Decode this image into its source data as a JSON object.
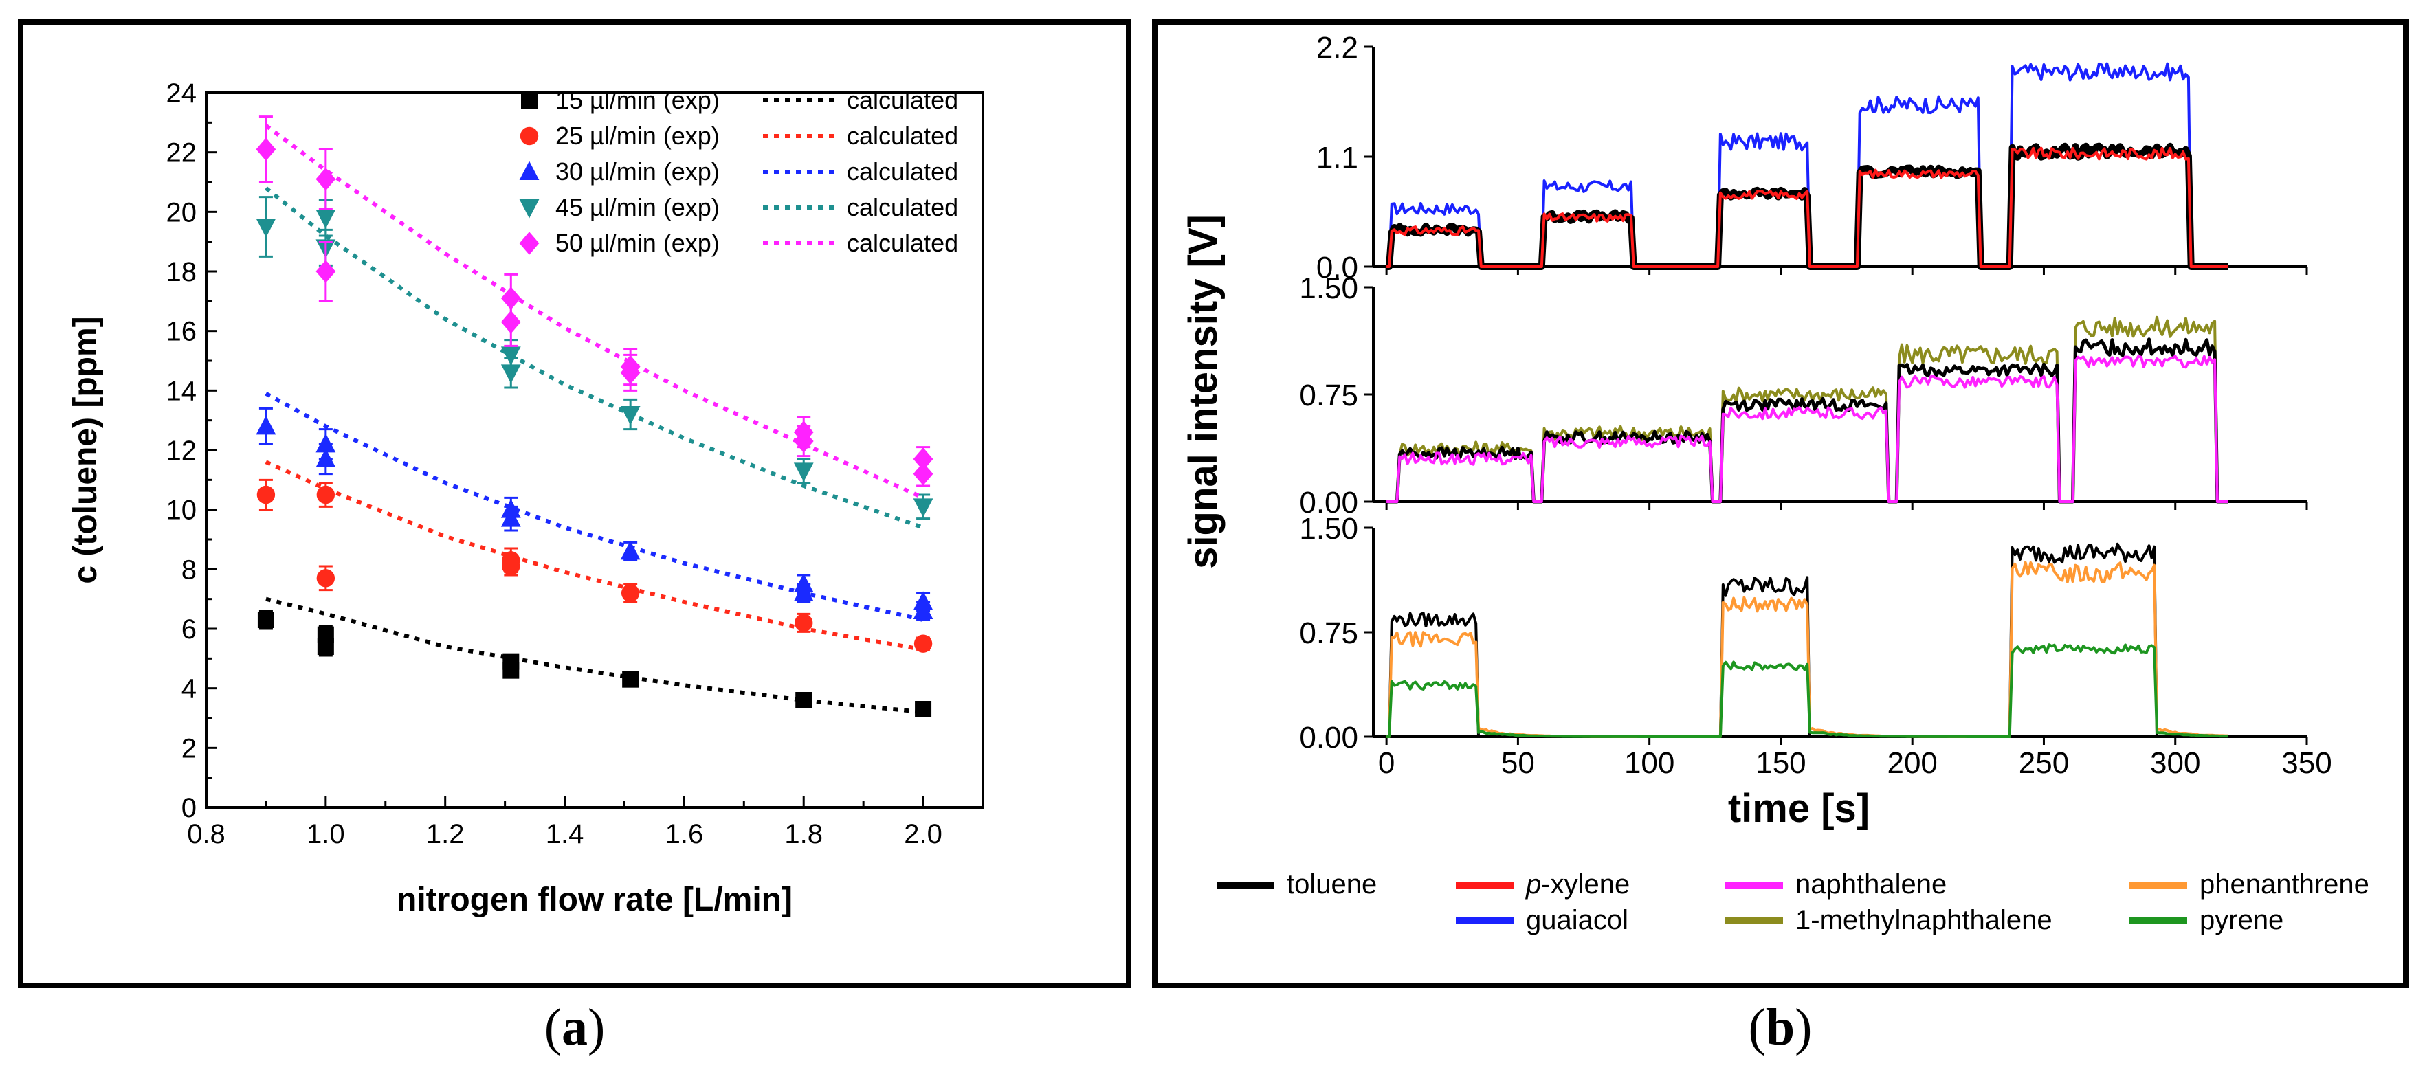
{
  "captions": {
    "a": "a",
    "b": "b"
  },
  "chart_data": [
    {
      "id": "a",
      "type": "scatter",
      "title": "",
      "xlabel": "nitrogen flow rate [L/min]",
      "ylabel": "c (toluene) [ppm]",
      "xlim": [
        0.8,
        2.1
      ],
      "ylim": [
        0,
        24
      ],
      "x_ticks": [
        "0.8",
        "1.0",
        "1.2",
        "1.4",
        "1.6",
        "1.8",
        "2.0"
      ],
      "y_ticks": [
        "0",
        "2",
        "4",
        "6",
        "8",
        "10",
        "12",
        "14",
        "16",
        "18",
        "20",
        "22",
        "24"
      ],
      "legend_position": "top-right",
      "series": [
        {
          "name": "15 µl/min (exp)",
          "fit_label": "calculated",
          "marker": "square",
          "color": "#000000",
          "points": [
            [
              0.9,
              6.3,
              0.3
            ],
            [
              1.0,
              5.8,
              0.3
            ],
            [
              1.0,
              5.4,
              0.3
            ],
            [
              1.31,
              4.9,
              0.2
            ],
            [
              1.31,
              4.6,
              0.2
            ],
            [
              1.51,
              4.3,
              0.2
            ],
            [
              1.8,
              3.6,
              0.2
            ],
            [
              2.0,
              3.3,
              0.2
            ]
          ],
          "fit": [
            [
              0.9,
              7.0
            ],
            [
              1.0,
              6.5
            ],
            [
              1.2,
              5.4
            ],
            [
              1.4,
              4.7
            ],
            [
              1.6,
              4.1
            ],
            [
              1.8,
              3.6
            ],
            [
              2.0,
              3.2
            ]
          ]
        },
        {
          "name": "25 µl/min (exp)",
          "fit_label": "calculated",
          "marker": "circle",
          "color": "#ff2a1a",
          "points": [
            [
              0.9,
              10.5,
              0.5
            ],
            [
              1.0,
              10.5,
              0.4
            ],
            [
              1.0,
              7.7,
              0.4
            ],
            [
              1.31,
              8.3,
              0.4
            ],
            [
              1.31,
              8.1,
              0.3
            ],
            [
              1.51,
              7.2,
              0.3
            ],
            [
              1.8,
              6.2,
              0.3
            ],
            [
              2.0,
              5.5,
              0.2
            ]
          ],
          "fit": [
            [
              0.9,
              11.6
            ],
            [
              1.0,
              10.7
            ],
            [
              1.2,
              9.1
            ],
            [
              1.4,
              7.9
            ],
            [
              1.6,
              6.9
            ],
            [
              1.8,
              6.0
            ],
            [
              2.0,
              5.3
            ]
          ]
        },
        {
          "name": "30 µl/min (exp)",
          "fit_label": "calculated",
          "marker": "triangle-up",
          "color": "#1a2aff",
          "points": [
            [
              0.9,
              12.8,
              0.6
            ],
            [
              1.0,
              12.2,
              0.5
            ],
            [
              1.0,
              11.7,
              0.5
            ],
            [
              1.31,
              10.0,
              0.4
            ],
            [
              1.31,
              9.7,
              0.4
            ],
            [
              1.51,
              8.6,
              0.3
            ],
            [
              1.8,
              7.5,
              0.3
            ],
            [
              1.8,
              7.2,
              0.3
            ],
            [
              2.0,
              6.9,
              0.3
            ],
            [
              2.0,
              6.6,
              0.3
            ]
          ],
          "fit": [
            [
              0.9,
              13.9
            ],
            [
              1.0,
              12.8
            ],
            [
              1.2,
              10.9
            ],
            [
              1.4,
              9.4
            ],
            [
              1.6,
              8.2
            ],
            [
              1.8,
              7.2
            ],
            [
              2.0,
              6.3
            ]
          ]
        },
        {
          "name": "45 µl/min (exp)",
          "fit_label": "calculated",
          "marker": "triangle-down",
          "color": "#1e9090",
          "points": [
            [
              0.9,
              19.5,
              1.0
            ],
            [
              1.0,
              19.8,
              0.6
            ],
            [
              1.0,
              18.8,
              0.6
            ],
            [
              1.31,
              15.2,
              0.5
            ],
            [
              1.31,
              14.6,
              0.5
            ],
            [
              1.51,
              13.2,
              0.5
            ],
            [
              1.8,
              11.3,
              0.4
            ],
            [
              2.0,
              10.1,
              0.4
            ]
          ],
          "fit": [
            [
              0.9,
              20.8
            ],
            [
              1.0,
              19.2
            ],
            [
              1.2,
              16.4
            ],
            [
              1.4,
              14.2
            ],
            [
              1.6,
              12.4
            ],
            [
              1.8,
              10.8
            ],
            [
              2.0,
              9.4
            ]
          ]
        },
        {
          "name": "50 µl/min (exp)",
          "fit_label": "calculated",
          "marker": "diamond",
          "color": "#ff22ff",
          "points": [
            [
              0.9,
              22.1,
              1.1
            ],
            [
              1.0,
              21.1,
              1.0
            ],
            [
              1.0,
              18.0,
              1.0
            ],
            [
              1.31,
              17.1,
              0.8
            ],
            [
              1.31,
              16.3,
              0.8
            ],
            [
              1.51,
              14.8,
              0.6
            ],
            [
              1.51,
              14.6,
              0.6
            ],
            [
              1.8,
              12.6,
              0.5
            ],
            [
              1.8,
              12.3,
              0.5
            ],
            [
              2.0,
              11.7,
              0.4
            ],
            [
              2.0,
              11.2,
              0.4
            ]
          ],
          "fit": [
            [
              0.9,
              22.9
            ],
            [
              1.0,
              21.4
            ],
            [
              1.2,
              18.6
            ],
            [
              1.4,
              16.1
            ],
            [
              1.6,
              14.0
            ],
            [
              1.8,
              12.2
            ],
            [
              2.0,
              10.4
            ]
          ]
        }
      ]
    },
    {
      "id": "b",
      "type": "line",
      "title": "",
      "xlabel": "time [s]",
      "ylabel": "signal intensity [V]",
      "xlim": [
        -5,
        350
      ],
      "x_ticks": [
        "0",
        "50",
        "100",
        "150",
        "200",
        "250",
        "300",
        "350"
      ],
      "legend_position": "bottom",
      "legend": [
        {
          "name": "toluene",
          "color": "#000000",
          "italic_prefix": ""
        },
        {
          "name": "-xylene",
          "color": "#ff1a1a",
          "italic_prefix": "p"
        },
        {
          "name": "naphthalene",
          "color": "#ff22ff",
          "italic_prefix": ""
        },
        {
          "name": "phenanthrene",
          "color": "#ff9933",
          "italic_prefix": ""
        },
        {
          "name": "guaiacol",
          "color": "#1a22ff",
          "italic_prefix": ""
        },
        {
          "name": "1-methylnaphthalene",
          "color": "#8c8c1e",
          "italic_prefix": ""
        },
        {
          "name": "pyrene",
          "color": "#1e9620",
          "italic_prefix": ""
        }
      ],
      "subplots": [
        {
          "ylim": [
            0,
            2.2
          ],
          "y_ticks": [
            "0.0",
            "1.1",
            "2.2"
          ],
          "series": [
            {
              "name": "guaiacol",
              "color": "#1a22ff",
              "width": 4,
              "noise": 0.06,
              "steps": [
                [
                  2,
                  35,
                  0.58
                ],
                [
                  60,
                  93,
                  0.8
                ],
                [
                  127,
                  160,
                  1.25
                ],
                [
                  180,
                  225,
                  1.62
                ],
                [
                  238,
                  305,
                  1.95
                ]
              ]
            },
            {
              "name": "toluene",
              "color": "#000000",
              "width": 10,
              "noise": 0.04,
              "steps": [
                [
                  2,
                  35,
                  0.37
                ],
                [
                  60,
                  93,
                  0.5
                ],
                [
                  127,
                  160,
                  0.73
                ],
                [
                  180,
                  225,
                  0.95
                ],
                [
                  238,
                  305,
                  1.15
                ]
              ]
            },
            {
              "name": "p-xylene",
              "color": "#ff1a1a",
              "width": 4,
              "noise": 0.04,
              "steps": [
                [
                  2,
                  35,
                  0.36
                ],
                [
                  60,
                  93,
                  0.49
                ],
                [
                  127,
                  160,
                  0.72
                ],
                [
                  180,
                  225,
                  0.93
                ],
                [
                  238,
                  305,
                  1.13
                ]
              ]
            }
          ]
        },
        {
          "ylim": [
            0,
            1.5
          ],
          "y_ticks": [
            "0.00",
            "0.75",
            "1.50"
          ],
          "series": [
            {
              "name": "1-methylnaphthalene",
              "color": "#8c8c1e",
              "width": 4,
              "noise": 0.05,
              "steps": [
                [
                  5,
                  55,
                  0.37
                ],
                [
                  60,
                  123,
                  0.48
                ],
                [
                  128,
                  190,
                  0.75
                ],
                [
                  195,
                  255,
                  1.03
                ],
                [
                  262,
                  315,
                  1.22
                ]
              ]
            },
            {
              "name": "toluene",
              "color": "#000000",
              "width": 5,
              "noise": 0.04,
              "steps": [
                [
                  5,
                  55,
                  0.34
                ],
                [
                  60,
                  123,
                  0.45
                ],
                [
                  128,
                  190,
                  0.68
                ],
                [
                  195,
                  255,
                  0.92
                ],
                [
                  262,
                  315,
                  1.08
                ]
              ]
            },
            {
              "name": "naphthalene",
              "color": "#ff22ff",
              "width": 4,
              "noise": 0.04,
              "steps": [
                [
                  5,
                  55,
                  0.3
                ],
                [
                  60,
                  123,
                  0.42
                ],
                [
                  128,
                  190,
                  0.62
                ],
                [
                  195,
                  255,
                  0.84
                ],
                [
                  262,
                  315,
                  0.98
                ]
              ]
            }
          ]
        },
        {
          "ylim": [
            0,
            1.5
          ],
          "y_ticks": [
            "0.00",
            "0.75",
            "1.50"
          ],
          "series": [
            {
              "name": "toluene",
              "color": "#000000",
              "width": 4,
              "noise": 0.05,
              "steps": [
                [
                  2,
                  34,
                  0.84
                ],
                [
                  128,
                  160,
                  1.08
                ],
                [
                  238,
                  292,
                  1.32
                ]
              ]
            },
            {
              "name": "phenanthrene",
              "color": "#ff9933",
              "width": 4,
              "noise": 0.05,
              "tail": 0.06,
              "steps": [
                [
                  2,
                  34,
                  0.7
                ],
                [
                  128,
                  160,
                  0.95
                ],
                [
                  238,
                  292,
                  1.18
                ]
              ]
            },
            {
              "name": "pyrene",
              "color": "#1e9620",
              "width": 4,
              "noise": 0.03,
              "tail": 0.04,
              "steps": [
                [
                  2,
                  34,
                  0.37
                ],
                [
                  128,
                  160,
                  0.51
                ],
                [
                  238,
                  292,
                  0.63
                ]
              ]
            }
          ]
        }
      ]
    }
  ]
}
